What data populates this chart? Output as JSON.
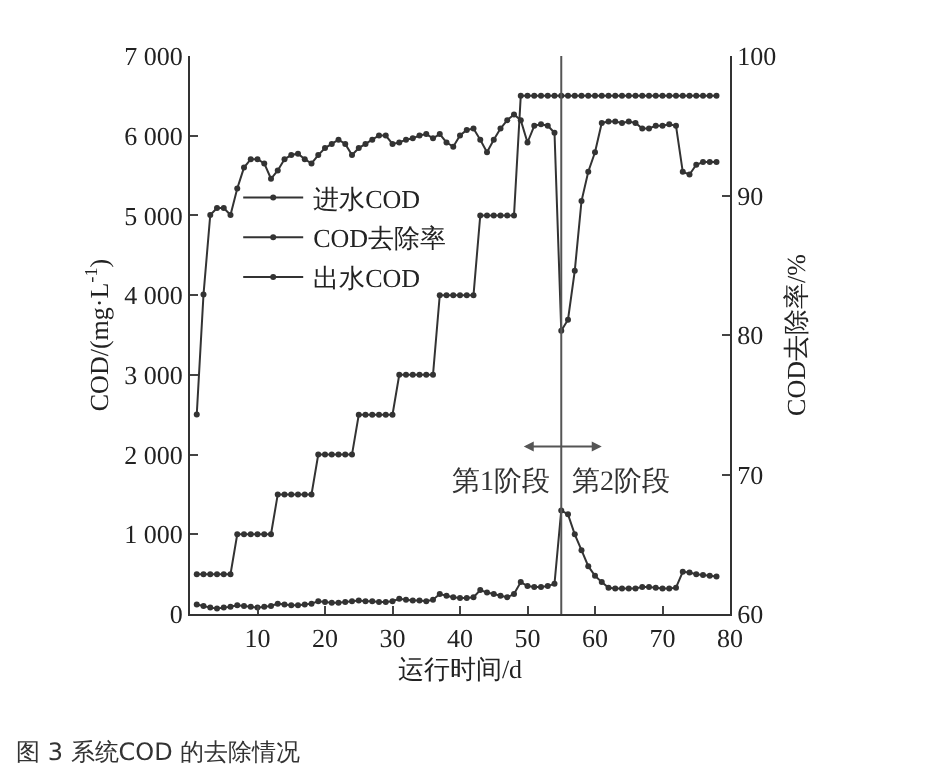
{
  "chart_data": {
    "type": "line",
    "xlabel": "运行时间/d",
    "ylabel": "COD/(mg·L$^{-1}$)",
    "y2label": "COD去除率/%",
    "x": [
      1,
      2,
      3,
      4,
      5,
      6,
      7,
      8,
      9,
      10,
      11,
      12,
      13,
      14,
      15,
      16,
      17,
      18,
      19,
      20,
      21,
      22,
      23,
      24,
      25,
      26,
      27,
      28,
      29,
      30,
      31,
      32,
      33,
      34,
      35,
      36,
      37,
      38,
      39,
      40,
      41,
      42,
      43,
      44,
      45,
      46,
      47,
      48,
      49,
      50,
      51,
      52,
      53,
      54,
      55,
      56,
      57,
      58,
      59,
      60,
      61,
      62,
      63,
      64,
      65,
      66,
      67,
      68,
      69,
      70,
      71,
      72,
      73,
      74,
      75,
      76,
      77,
      78
    ],
    "series": [
      {
        "name": "进水COD",
        "color": "#333333",
        "values": [
          500,
          500,
          500,
          500,
          500,
          500,
          1000,
          1000,
          1000,
          1000,
          1000,
          1000,
          1500,
          1500,
          1500,
          1500,
          1500,
          1500,
          2000,
          2000,
          2000,
          2000,
          2000,
          2000,
          2500,
          2500,
          2500,
          2500,
          2500,
          2500,
          3000,
          3000,
          3000,
          3000,
          3000,
          3000,
          4000,
          4000,
          4000,
          4000,
          4000,
          4000,
          5000,
          5000,
          5000,
          5000,
          5000,
          5000,
          6500,
          6500,
          6500,
          6500,
          6500,
          6500,
          6500,
          6500,
          6500,
          6500,
          6500,
          6500,
          6500,
          6500,
          6500,
          6500,
          6500,
          6500,
          6500,
          6500,
          6500,
          6500,
          6500,
          6500,
          6500,
          6500,
          6500,
          6500,
          6500,
          6500
        ]
      },
      {
        "name": "COD去除率",
        "color": "#333333",
        "axis": "y2",
        "values": [
          74.3,
          82.9,
          88.6,
          89.1,
          89.1,
          88.6,
          90.5,
          92.0,
          92.6,
          92.6,
          92.3,
          91.2,
          91.8,
          92.6,
          92.9,
          93.0,
          92.6,
          92.3,
          92.9,
          93.4,
          93.7,
          94.0,
          93.7,
          92.9,
          93.4,
          93.7,
          94.0,
          94.3,
          94.3,
          93.7,
          93.8,
          94.0,
          94.1,
          94.3,
          94.4,
          94.1,
          94.4,
          93.8,
          93.5,
          94.3,
          94.7,
          94.8,
          94.0,
          93.1,
          94.0,
          94.8,
          95.4,
          95.8,
          95.4,
          93.8,
          95.0,
          95.1,
          95.0,
          94.5,
          80.3,
          81.1,
          84.6,
          89.6,
          91.7,
          93.1,
          95.2,
          95.3,
          95.3,
          95.2,
          95.3,
          95.2,
          94.8,
          94.8,
          95.0,
          95.0,
          95.1,
          95.0,
          91.7,
          91.5,
          92.2,
          92.4,
          92.4,
          92.4
        ]
      },
      {
        "name": "出水COD",
        "color": "#333333",
        "values": [
          120,
          100,
          80,
          70,
          80,
          90,
          110,
          100,
          90,
          80,
          90,
          100,
          130,
          120,
          110,
          110,
          120,
          130,
          160,
          150,
          140,
          140,
          150,
          160,
          170,
          160,
          160,
          150,
          150,
          160,
          190,
          180,
          170,
          170,
          160,
          180,
          250,
          230,
          210,
          200,
          200,
          210,
          300,
          270,
          250,
          230,
          210,
          250,
          400,
          350,
          340,
          340,
          350,
          380,
          1300,
          1250,
          1000,
          800,
          600,
          480,
          400,
          330,
          320,
          320,
          320,
          320,
          340,
          340,
          330,
          320,
          320,
          330,
          530,
          520,
          500,
          490,
          480,
          470
        ]
      }
    ],
    "xlim": [
      0,
      80
    ],
    "xticks": [
      10,
      20,
      30,
      40,
      50,
      60,
      70,
      80
    ],
    "ylim": [
      0,
      7000
    ],
    "yticks": [
      0,
      {
        "value": 1000,
        "label": "1 000"
      },
      {
        "value": 2000,
        "label": "2 000"
      },
      {
        "value": 3000,
        "label": "3 000"
      },
      {
        "value": 4000,
        "label": "4 000"
      },
      {
        "value": 5000,
        "label": "5 000"
      },
      {
        "value": 6000,
        "label": "6 000"
      },
      {
        "value": 7000,
        "label": "7 000"
      }
    ],
    "y2lim": [
      60,
      100
    ],
    "y2ticks": [
      60,
      70,
      80,
      90,
      100
    ],
    "ref_lines": [
      {
        "axis": "x",
        "value": 55,
        "color": "#555555"
      }
    ],
    "annotations": [
      "第1阶段",
      "第2阶段",
      "图 3 系统COD 的去除情况"
    ],
    "legend": "top left",
    "marker": "circle",
    "line_style": "solid"
  }
}
